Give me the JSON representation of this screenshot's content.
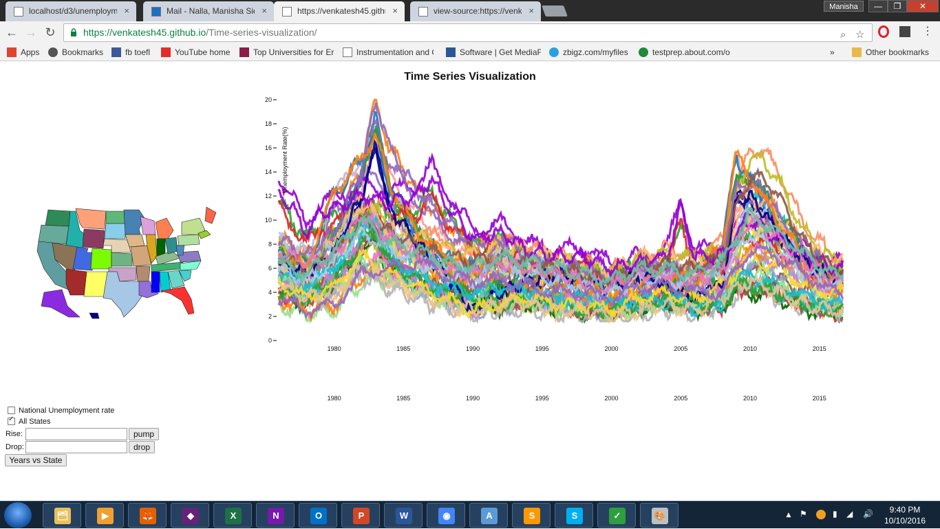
{
  "window": {
    "profile_name": "Manisha",
    "controls": {
      "minimize": "—",
      "maximize": "❐",
      "close": "✕"
    }
  },
  "tabs": [
    {
      "title": "localhost/d3/unemployme",
      "icon": "page-icon",
      "active": false
    },
    {
      "title": "Mail - Nalla, Manisha Sid",
      "icon": "mail-icon",
      "active": false
    },
    {
      "title": "https://venkatesh45.githu",
      "icon": "page-icon",
      "active": true
    },
    {
      "title": "view-source:https://venk",
      "icon": "page-icon",
      "active": false
    }
  ],
  "address_bar": {
    "protocol_host": "https://venkatesh45.github.io",
    "path": "/Time-series-visualization/"
  },
  "bookmarks": [
    {
      "label": "Apps",
      "icon": "apps-grid-icon"
    },
    {
      "label": "Bookmarks",
      "icon": "star-icon"
    },
    {
      "label": "fb toefl",
      "icon": "facebook-icon"
    },
    {
      "label": "YouTube home",
      "icon": "youtube-icon"
    },
    {
      "label": "Top Universities for Er",
      "icon": "the-icon"
    },
    {
      "label": "Instrumentation and C",
      "icon": "page-icon"
    },
    {
      "label": "Software | Get MediaF",
      "icon": "software-icon"
    },
    {
      "label": "zbigz.com/myfiles",
      "icon": "zbigz-icon"
    },
    {
      "label": "testprep.about.com/o",
      "icon": "about-icon"
    },
    {
      "label": "»",
      "icon": "more-icon"
    },
    {
      "label": "Other bookmarks",
      "icon": "folder-icon"
    }
  ],
  "page": {
    "title": "Time Series Visualization"
  },
  "controls": {
    "national_label": "National Unemployment rate",
    "national_checked": false,
    "all_states_label": "All States",
    "all_states_checked": true,
    "rise_label": "Rise:",
    "rise_value": "",
    "pump_label": "pump",
    "drop_label": "Drop:",
    "drop_value": "",
    "drop_button_label": "drop",
    "years_vs_state_label": "Years vs State"
  },
  "chart_data": {
    "type": "line",
    "title": "Time Series Visualization",
    "ylabel": "Unemployment Rate(%)",
    "xlabel": "",
    "ylim": [
      0,
      20
    ],
    "xlim": [
      1976,
      2016.7
    ],
    "y_ticks": [
      0,
      2,
      4,
      6,
      8,
      10,
      12,
      14,
      16,
      18,
      20
    ],
    "x_ticks": [
      1980,
      1985,
      1990,
      1995,
      2000,
      2005,
      2010,
      2015
    ],
    "second_x_axis_ticks": [
      1980,
      1985,
      1990,
      1995,
      2000,
      2005,
      2010,
      2015
    ],
    "grid": false,
    "legend": "none",
    "series_count": 51,
    "colors": [
      "#ff7f0e",
      "#9467bd",
      "#1f77b4",
      "#2ca02c",
      "#d62728",
      "#8c564b",
      "#17becf",
      "#bcbd22",
      "#e377c2",
      "#7f7f7f",
      "#aec7e8",
      "#ffbb78",
      "#98df8a",
      "#ff9896",
      "#c5b0d5",
      "#00008b",
      "#9400d3",
      "#006400",
      "#66c2a5",
      "#fc8d62",
      "#8da0cb",
      "#a6d854",
      "#ffd92f",
      "#e5c494",
      "#b3b3b3"
    ],
    "representative_series": [
      {
        "color": "#9467bd",
        "x": [
          1976,
          1978,
          1980,
          1982,
          1983,
          1984,
          1986,
          1988,
          1990,
          1992,
          1994,
          1996,
          1998,
          2000,
          2002,
          2004,
          2006,
          2008,
          2009,
          2010,
          2011,
          2012,
          2014,
          2016
        ],
        "y": [
          8.5,
          7.0,
          9.0,
          14.5,
          20.0,
          16.0,
          12.5,
          10.0,
          8.0,
          8.5,
          7.0,
          6.5,
          6.0,
          5.0,
          6.0,
          6.2,
          5.5,
          7.5,
          12.5,
          13.0,
          12.5,
          10.5,
          7.5,
          6.0
        ]
      },
      {
        "color": "#ff7f0e",
        "x": [
          1976,
          1978,
          1980,
          1981,
          1982,
          1983,
          1984,
          1986,
          1988,
          1990,
          1992,
          1994,
          1996,
          1998,
          2000,
          2002,
          2004,
          2006,
          2008,
          2009,
          2010,
          2012,
          2014,
          2016
        ],
        "y": [
          7.0,
          6.0,
          12.5,
          13.5,
          15.5,
          17.0,
          13.0,
          9.0,
          7.0,
          6.0,
          6.5,
          5.5,
          5.0,
          4.5,
          4.0,
          5.5,
          5.5,
          5.0,
          8.0,
          15.5,
          13.5,
          10.0,
          6.5,
          5.5
        ]
      },
      {
        "color": "#00008b",
        "x": [
          1976,
          1978,
          1980,
          1982,
          1983,
          1984,
          1986,
          1988,
          1990,
          1992,
          1994,
          1996,
          1998,
          2000,
          2002,
          2004,
          2006,
          2008,
          2009,
          2010,
          2012,
          2014,
          2016
        ],
        "y": [
          6.5,
          5.5,
          7.5,
          12.0,
          16.0,
          11.0,
          8.0,
          5.5,
          2.5,
          4.0,
          5.0,
          5.5,
          5.0,
          4.5,
          5.5,
          4.5,
          3.5,
          4.5,
          11.5,
          12.0,
          9.0,
          6.5,
          5.0
        ]
      },
      {
        "color": "#9400d3",
        "x": [
          1976,
          1977,
          1978,
          1979,
          1980,
          1982,
          1984,
          1986,
          1987,
          1988,
          1990,
          1992,
          1994,
          1996,
          1998,
          2000,
          2002,
          2004,
          2005,
          2006,
          2008,
          2010,
          2012,
          2014,
          2016
        ],
        "y": [
          12.5,
          11.0,
          9.0,
          10.5,
          11.0,
          12.0,
          11.5,
          12.0,
          13.5,
          11.5,
          8.5,
          9.0,
          7.5,
          7.0,
          7.0,
          6.0,
          6.5,
          7.0,
          11.0,
          7.0,
          7.0,
          10.0,
          8.5,
          7.0,
          6.0
        ]
      },
      {
        "color": "#2ca02c",
        "x": [
          1976,
          1978,
          1980,
          1982,
          1983,
          1984,
          1986,
          1988,
          1990,
          1992,
          1994,
          1996,
          1998,
          2000,
          2002,
          2004,
          2006,
          2008,
          2009,
          2010,
          2012,
          2014,
          2016
        ],
        "y": [
          4.0,
          3.5,
          5.0,
          8.0,
          9.0,
          6.5,
          5.0,
          4.0,
          3.5,
          3.0,
          3.5,
          3.0,
          2.5,
          2.5,
          3.0,
          3.5,
          3.0,
          3.0,
          4.5,
          4.5,
          4.0,
          3.0,
          2.5
        ]
      },
      {
        "color": "#17becf",
        "x": [
          1976,
          1978,
          1980,
          1982,
          1983,
          1984,
          1986,
          1988,
          1990,
          1992,
          1994,
          1996,
          1998,
          2000,
          2002,
          2004,
          2006,
          2008,
          2009,
          2010,
          2012,
          2014,
          2016
        ],
        "y": [
          5.5,
          4.5,
          6.0,
          9.5,
          10.5,
          7.0,
          5.5,
          4.5,
          4.0,
          4.5,
          4.0,
          3.5,
          3.5,
          3.0,
          3.5,
          3.5,
          3.0,
          3.5,
          5.0,
          5.5,
          4.5,
          3.5,
          3.0
        ]
      },
      {
        "color": "#8c564b",
        "x": [
          1976,
          1978,
          1980,
          1982,
          1984,
          1986,
          1988,
          1990,
          1992,
          1994,
          1996,
          1998,
          2000,
          2002,
          2004,
          2006,
          2008,
          2009,
          2010,
          2011,
          2012,
          2014,
          2016
        ],
        "y": [
          7.0,
          6.0,
          7.0,
          10.0,
          9.0,
          8.0,
          7.0,
          6.5,
          7.0,
          6.5,
          6.0,
          5.5,
          5.0,
          6.0,
          6.5,
          6.0,
          7.0,
          11.0,
          13.5,
          13.5,
          12.0,
          8.0,
          6.0
        ]
      },
      {
        "color": "#ffd92f",
        "x": [
          1976,
          1978,
          1980,
          1982,
          1984,
          1986,
          1988,
          1990,
          1992,
          1994,
          1996,
          1998,
          2000,
          2002,
          2004,
          2006,
          2008,
          2010,
          2012,
          2014,
          2016
        ],
        "y": [
          5.0,
          3.5,
          4.5,
          7.0,
          5.5,
          4.5,
          3.5,
          2.5,
          3.0,
          3.5,
          3.0,
          3.0,
          2.5,
          3.5,
          4.0,
          3.5,
          4.5,
          7.0,
          6.0,
          4.5,
          4.0
        ]
      },
      {
        "color": "#aec7e8",
        "x": [
          1976,
          1978,
          1980,
          1982,
          1984,
          1986,
          1988,
          1990,
          1992,
          1994,
          1996,
          1998,
          2000,
          2002,
          2004,
          2006,
          2008,
          2010,
          2012,
          2014,
          2016
        ],
        "y": [
          6.0,
          5.0,
          6.5,
          9.0,
          7.5,
          6.5,
          5.5,
          5.0,
          6.0,
          5.5,
          5.0,
          4.5,
          4.0,
          5.0,
          5.0,
          4.5,
          5.5,
          9.0,
          7.5,
          5.5,
          4.5
        ]
      },
      {
        "color": "#e377c2",
        "x": [
          1976,
          1978,
          1980,
          1982,
          1984,
          1986,
          1988,
          1990,
          1992,
          1994,
          1996,
          1998,
          2000,
          2002,
          2004,
          2006,
          2008,
          2010,
          2012,
          2014,
          2016
        ],
        "y": [
          7.5,
          6.5,
          7.0,
          10.5,
          8.5,
          7.0,
          6.0,
          5.5,
          6.5,
          6.0,
          5.5,
          5.0,
          4.5,
          5.5,
          5.5,
          5.0,
          6.0,
          10.0,
          8.5,
          6.5,
          5.0
        ]
      },
      {
        "color": "#66c2a5",
        "x": [
          1976,
          1978,
          1980,
          1982,
          1984,
          1986,
          1988,
          1990,
          1992,
          1994,
          1996,
          1998,
          2000,
          2002,
          2004,
          2006,
          2008,
          2010,
          2012,
          2014,
          2016
        ],
        "y": [
          6.5,
          5.5,
          7.5,
          10.0,
          8.0,
          7.5,
          6.5,
          6.0,
          7.0,
          6.5,
          6.0,
          5.5,
          5.0,
          6.0,
          6.0,
          5.5,
          6.5,
          10.5,
          9.0,
          7.0,
          5.5
        ]
      },
      {
        "color": "#e5c494",
        "x": [
          1976,
          1978,
          1980,
          1982,
          1984,
          1986,
          1988,
          1990,
          1992,
          1994,
          1996,
          1998,
          2000,
          2002,
          2004,
          2006,
          2008,
          2010,
          2012,
          2014,
          2016
        ],
        "y": [
          4.5,
          3.5,
          4.0,
          6.0,
          5.0,
          4.0,
          3.0,
          2.5,
          3.0,
          3.0,
          2.5,
          2.5,
          2.0,
          2.5,
          3.0,
          2.5,
          3.5,
          5.0,
          4.0,
          3.0,
          2.5
        ]
      },
      {
        "color": "#9467bd",
        "x": [
          1976,
          1978,
          1980,
          1982,
          1984,
          1986,
          1988,
          1990,
          1992,
          1994,
          1996,
          1998,
          2000,
          2002,
          2004,
          2006,
          2008,
          2010,
          2012,
          2014,
          2016
        ],
        "y": [
          3.5,
          2.5,
          3.0,
          5.5,
          6.0,
          6.5,
          5.5,
          5.0,
          5.0,
          4.5,
          4.0,
          4.0,
          3.5,
          4.5,
          4.5,
          4.0,
          4.0,
          7.5,
          7.0,
          5.5,
          4.0
        ]
      }
    ]
  },
  "map": {
    "states": [
      {
        "name": "WA",
        "color": "#2e8b57"
      },
      {
        "name": "OR",
        "color": "#66aa99"
      },
      {
        "name": "CA",
        "color": "#5f9ea0"
      },
      {
        "name": "ID",
        "color": "#20b2aa"
      },
      {
        "name": "NV",
        "color": "#8b7355"
      },
      {
        "name": "MT",
        "color": "#ffa07a"
      },
      {
        "name": "WY",
        "color": "#8b3a62"
      },
      {
        "name": "UT",
        "color": "#4169e1"
      },
      {
        "name": "AZ",
        "color": "#a52a2a"
      },
      {
        "name": "CO",
        "color": "#7cfc00"
      },
      {
        "name": "NM",
        "color": "#ffff66"
      },
      {
        "name": "ND",
        "color": "#5fb878"
      },
      {
        "name": "SD",
        "color": "#87ceeb"
      },
      {
        "name": "NE",
        "color": "#e6d3b3"
      },
      {
        "name": "KS",
        "color": "#6fb383"
      },
      {
        "name": "OK",
        "color": "#c8a2c8"
      },
      {
        "name": "TX",
        "color": "#a7c7e7"
      },
      {
        "name": "MN",
        "color": "#4682b4"
      },
      {
        "name": "IA",
        "color": "#deb887"
      },
      {
        "name": "MO",
        "color": "#d2a679"
      },
      {
        "name": "AR",
        "color": "#b38b6d"
      },
      {
        "name": "LA",
        "color": "#9370db"
      },
      {
        "name": "WI",
        "color": "#dda0dd"
      },
      {
        "name": "IL",
        "color": "#daa520"
      },
      {
        "name": "MS",
        "color": "#0000ff"
      },
      {
        "name": "MI",
        "color": "#ff7f50"
      },
      {
        "name": "IN",
        "color": "#006400"
      },
      {
        "name": "KY",
        "color": "#8fbc8f"
      },
      {
        "name": "TN",
        "color": "#3cb371"
      },
      {
        "name": "AL",
        "color": "#00ced1"
      },
      {
        "name": "OH",
        "color": "#2f8f8f"
      },
      {
        "name": "GA",
        "color": "#6ad6c9"
      },
      {
        "name": "FL",
        "color": "#ff3030"
      },
      {
        "name": "SC",
        "color": "#48d1cc"
      },
      {
        "name": "NC",
        "color": "#7fffd4"
      },
      {
        "name": "VA",
        "color": "#8e7cc3"
      },
      {
        "name": "WV",
        "color": "#4b8bbe"
      },
      {
        "name": "PA",
        "color": "#b0e0a0"
      },
      {
        "name": "NY",
        "color": "#c0e08f"
      },
      {
        "name": "ME",
        "color": "#ff6347"
      },
      {
        "name": "AK",
        "color": "#8a2be2"
      },
      {
        "name": "HI",
        "color": "#000080"
      }
    ]
  },
  "taskbar": {
    "apps": [
      {
        "name": "file-explorer-icon",
        "color": "#e8c15a",
        "glyph": "🗂"
      },
      {
        "name": "media-player-icon",
        "color": "#f0a030",
        "glyph": "▶"
      },
      {
        "name": "firefox-icon",
        "color": "#e66000",
        "glyph": "🦊"
      },
      {
        "name": "visual-studio-icon",
        "color": "#68217a",
        "glyph": "◆"
      },
      {
        "name": "excel-icon",
        "color": "#1e7145",
        "glyph": "X"
      },
      {
        "name": "onenote-icon",
        "color": "#7719aa",
        "glyph": "N"
      },
      {
        "name": "outlook-icon",
        "color": "#0072c6",
        "glyph": "O"
      },
      {
        "name": "powerpoint-icon",
        "color": "#d24726",
        "glyph": "P"
      },
      {
        "name": "word-icon",
        "color": "#2b579a",
        "glyph": "W"
      },
      {
        "name": "chrome-icon",
        "color": "#4285f4",
        "glyph": "◉"
      },
      {
        "name": "wordpad-icon",
        "color": "#5b9bd5",
        "glyph": "A"
      },
      {
        "name": "sublime-icon",
        "color": "#ff9800",
        "glyph": "S"
      },
      {
        "name": "skype-icon",
        "color": "#00aff0",
        "glyph": "S"
      },
      {
        "name": "security-shield-icon",
        "color": "#2e9e3e",
        "glyph": "✓"
      },
      {
        "name": "paint-icon",
        "color": "#c0c0c0",
        "glyph": "🎨"
      }
    ],
    "time": "9:40 PM",
    "date": "10/10/2016"
  }
}
